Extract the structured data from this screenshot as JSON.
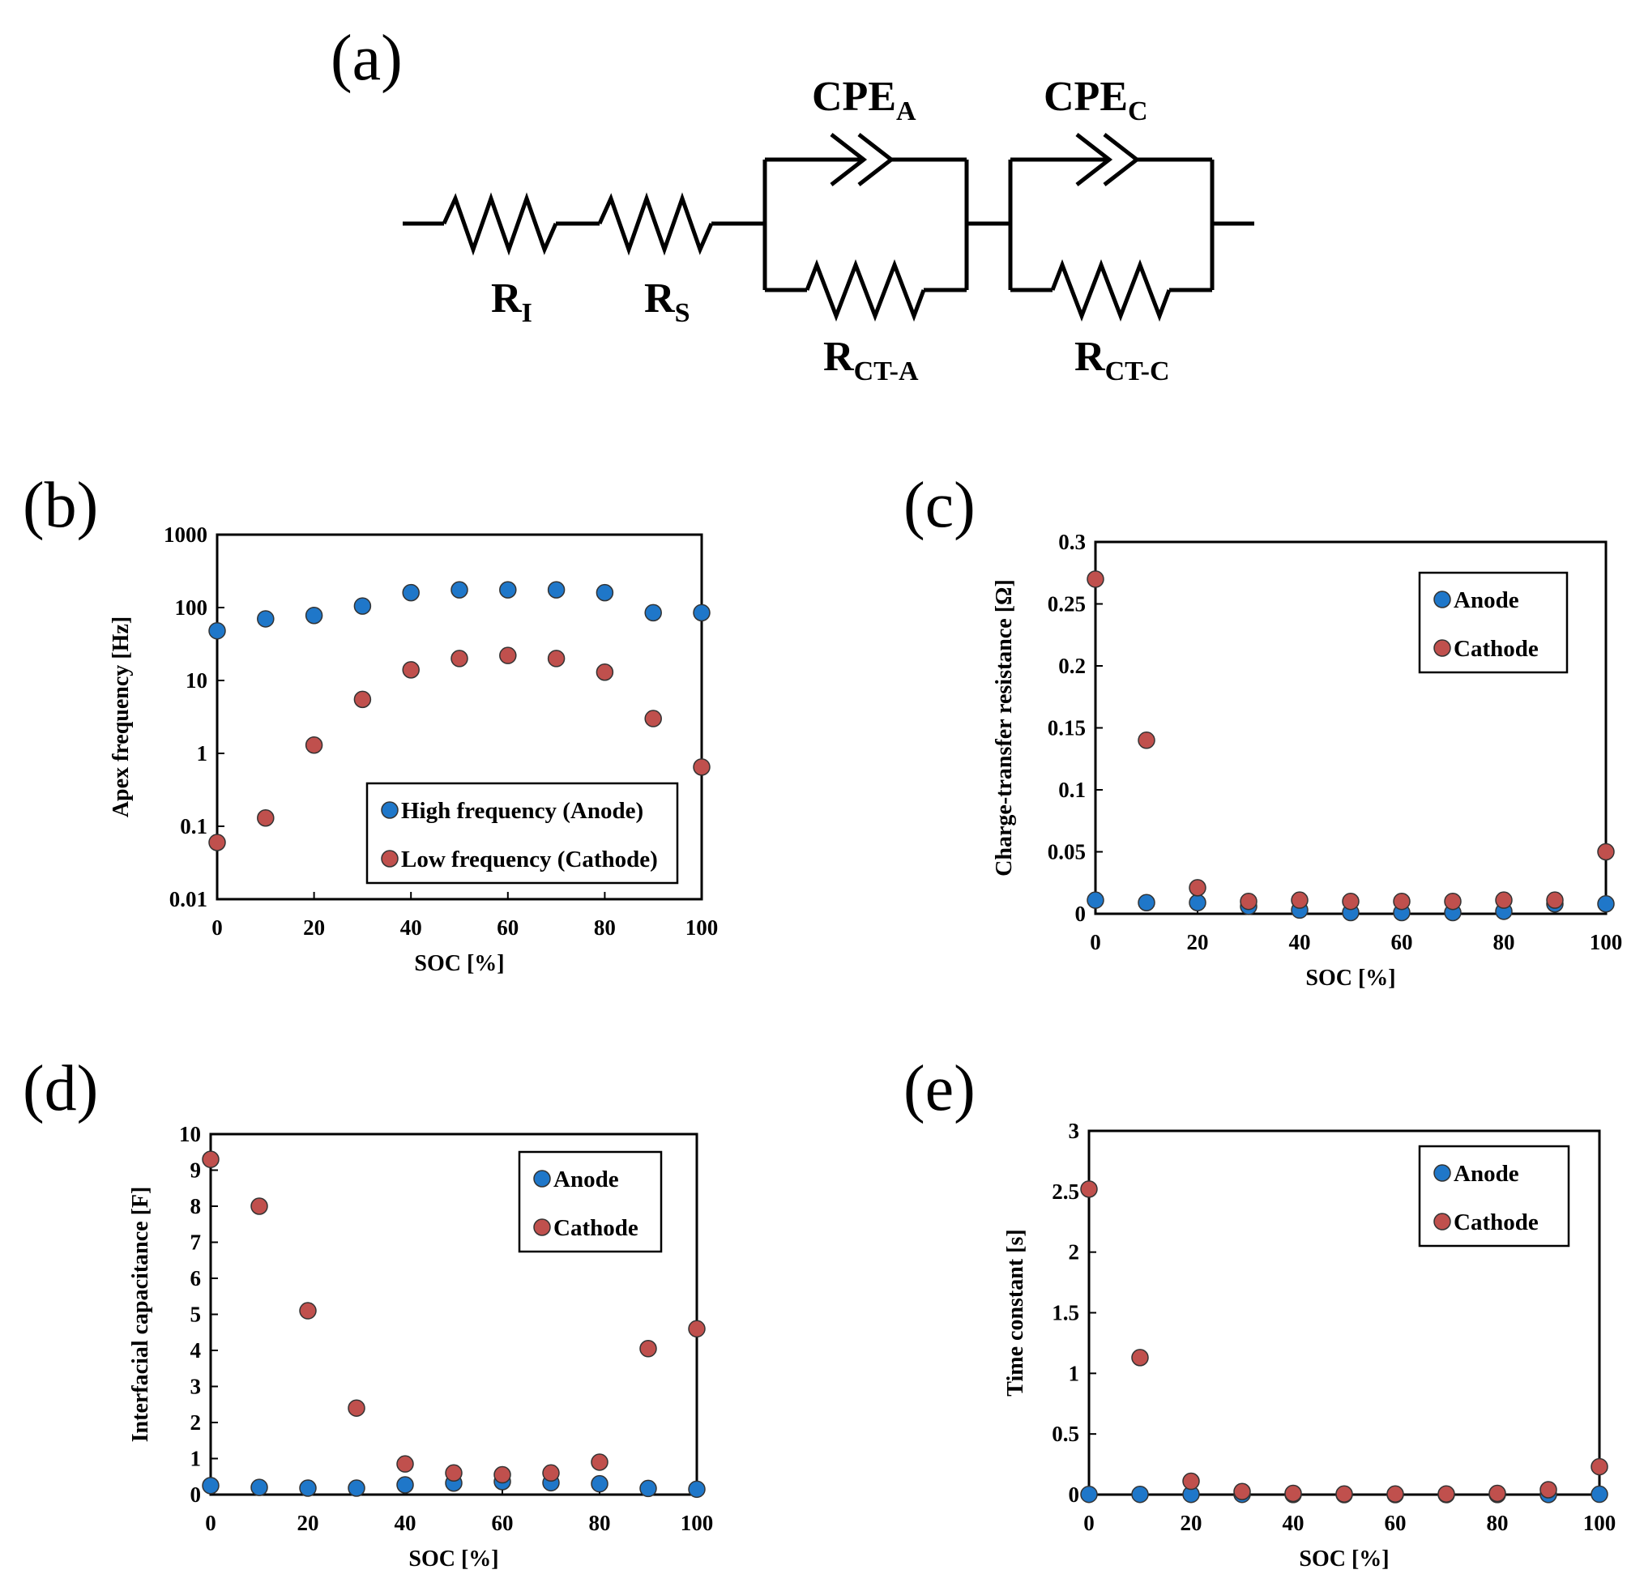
{
  "panel_labels": [
    "(a)",
    "(b)",
    "(c)",
    "(d)",
    "(e)"
  ],
  "circuit": {
    "elements": [
      {
        "main": "R",
        "sub": "I"
      },
      {
        "main": "R",
        "sub": "S"
      },
      {
        "main": "CPE",
        "sub": "A"
      },
      {
        "main": "R",
        "sub": "CT-A"
      },
      {
        "main": "CPE",
        "sub": "C"
      },
      {
        "main": "R",
        "sub": "CT-C"
      }
    ]
  },
  "colors": {
    "anode": "#1f77c9",
    "cathode": "#c0504d",
    "marker_edge": "#333333"
  },
  "chart_data": [
    {
      "id": "b",
      "type": "scatter",
      "yscale": "log",
      "xlabel": "SOC [%]",
      "ylabel": "Apex frequency [Hz]",
      "xlim": [
        0,
        100
      ],
      "ylim": [
        0.01,
        1000
      ],
      "xticks": [
        0,
        20,
        40,
        60,
        80,
        100
      ],
      "yticks": [
        0.01,
        0.1,
        1,
        10,
        100,
        1000
      ],
      "ytick_labels": [
        "0.01",
        "0.1",
        "1",
        "10",
        "100",
        "1000"
      ],
      "legend": "bottom-right",
      "x": [
        0,
        10,
        20,
        30,
        40,
        50,
        60,
        70,
        80,
        90,
        100
      ],
      "series": [
        {
          "name": "High frequency (Anode)",
          "color_key": "anode",
          "values": [
            48,
            70,
            78,
            105,
            160,
            175,
            175,
            175,
            160,
            85,
            85
          ]
        },
        {
          "name": "Low frequency (Cathode)",
          "color_key": "cathode",
          "values": [
            0.06,
            0.13,
            1.3,
            5.5,
            14,
            20,
            22,
            20,
            13,
            3,
            0.65
          ]
        }
      ]
    },
    {
      "id": "c",
      "type": "scatter",
      "xlabel": "SOC [%]",
      "ylabel": "Charge-transfer resistance [Ω]",
      "xlim": [
        0,
        100
      ],
      "ylim": [
        0,
        0.3
      ],
      "xticks": [
        0,
        20,
        40,
        60,
        80,
        100
      ],
      "yticks": [
        0,
        0.05,
        0.1,
        0.15,
        0.2,
        0.25,
        0.3
      ],
      "ytick_labels": [
        "0",
        "0.05",
        "0.1",
        "0.15",
        "0.2",
        "0.25",
        "0.3"
      ],
      "legend": "top-right",
      "x": [
        0,
        10,
        20,
        30,
        40,
        50,
        60,
        70,
        80,
        90,
        100
      ],
      "series": [
        {
          "name": "Anode",
          "color_key": "anode",
          "values": [
            0.011,
            0.009,
            0.009,
            0.006,
            0.003,
            0.001,
            0.001,
            0.001,
            0.002,
            0.008,
            0.008
          ]
        },
        {
          "name": "Cathode",
          "color_key": "cathode",
          "values": [
            0.27,
            0.14,
            0.021,
            0.01,
            0.011,
            0.01,
            0.01,
            0.01,
            0.011,
            0.011,
            0.05
          ]
        }
      ]
    },
    {
      "id": "d",
      "type": "scatter",
      "xlabel": "SOC [%]",
      "ylabel": "Interfacial capacitance [F]",
      "xlim": [
        0,
        100
      ],
      "ylim": [
        0,
        10
      ],
      "xticks": [
        0,
        20,
        40,
        60,
        80,
        100
      ],
      "yticks": [
        0,
        1,
        2,
        3,
        4,
        5,
        6,
        7,
        8,
        9,
        10
      ],
      "ytick_labels": [
        "0",
        "1",
        "2",
        "3",
        "4",
        "5",
        "6",
        "7",
        "8",
        "9",
        "10"
      ],
      "legend": "top-right",
      "x": [
        0,
        10,
        20,
        30,
        40,
        50,
        60,
        70,
        80,
        90,
        100
      ],
      "series": [
        {
          "name": "Anode",
          "color_key": "anode",
          "values": [
            0.25,
            0.2,
            0.18,
            0.18,
            0.27,
            0.32,
            0.36,
            0.33,
            0.3,
            0.17,
            0.15
          ]
        },
        {
          "name": "Cathode",
          "color_key": "cathode",
          "values": [
            9.3,
            8.0,
            5.1,
            2.4,
            0.85,
            0.6,
            0.55,
            0.6,
            0.9,
            4.05,
            4.6
          ]
        }
      ]
    },
    {
      "id": "e",
      "type": "scatter",
      "xlabel": "SOC [%]",
      "ylabel": "Time constant [s]",
      "xlim": [
        0,
        100
      ],
      "ylim": [
        0,
        3
      ],
      "xticks": [
        0,
        20,
        40,
        60,
        80,
        100
      ],
      "yticks": [
        0,
        0.5,
        1,
        1.5,
        2,
        2.5,
        3
      ],
      "ytick_labels": [
        "0",
        "0.5",
        "1",
        "1.5",
        "2",
        "2.5",
        "3"
      ],
      "legend": "top-right",
      "x": [
        0,
        10,
        20,
        30,
        40,
        50,
        60,
        70,
        80,
        90,
        100
      ],
      "series": [
        {
          "name": "Anode",
          "color_key": "anode",
          "values": [
            0.002,
            0.002,
            0.002,
            0.002,
            0.001,
            0.0,
            0.0,
            0.0,
            0.001,
            0.001,
            0.003
          ]
        },
        {
          "name": "Cathode",
          "color_key": "cathode",
          "values": [
            2.52,
            1.13,
            0.11,
            0.025,
            0.01,
            0.005,
            0.005,
            0.005,
            0.01,
            0.04,
            0.23
          ]
        }
      ]
    }
  ]
}
